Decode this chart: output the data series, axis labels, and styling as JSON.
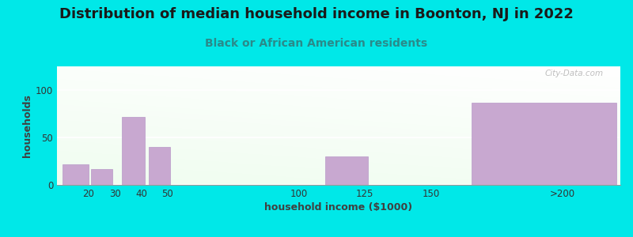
{
  "title": "Distribution of median household income in Boonton, NJ in 2022",
  "subtitle": "Black or African American residents",
  "xlabel": "household income ($1000)",
  "ylabel": "households",
  "background_outer": "#00e8e8",
  "bar_color": "#c8a8d0",
  "bar_edge_color": "#b898c8",
  "yticks": [
    0,
    50,
    100
  ],
  "categories": [
    "20",
    "30",
    "40",
    "50",
    "100",
    "125",
    "150",
    ">200"
  ],
  "values": [
    22,
    17,
    72,
    40,
    0,
    30,
    0,
    87
  ],
  "bar_positions": [
    15,
    25,
    37,
    47,
    95,
    118,
    143,
    193
  ],
  "bar_widths": [
    10,
    8,
    9,
    8,
    8,
    16,
    8,
    55
  ],
  "xtick_positions": [
    20,
    30,
    40,
    50,
    100,
    125,
    150,
    200
  ],
  "xtick_labels": [
    "20",
    "30",
    "40",
    "50",
    "100",
    "125",
    "150",
    ">200"
  ],
  "watermark": "City-Data.com",
  "title_fontsize": 13,
  "subtitle_fontsize": 10,
  "axis_label_fontsize": 9,
  "tick_fontsize": 8.5,
  "title_color": "#1a1a1a",
  "subtitle_color": "#2a8a8a",
  "ylabel_color": "#404040",
  "xlabel_color": "#404040"
}
